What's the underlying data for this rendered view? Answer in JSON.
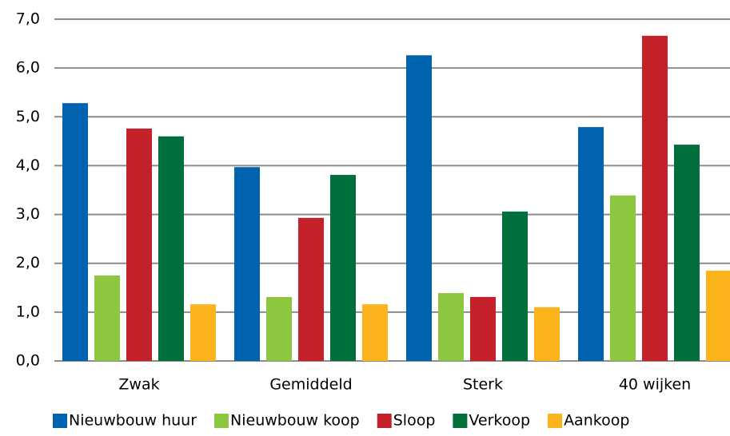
{
  "chart_data": {
    "type": "bar",
    "categories": [
      "Zwak",
      "Gemiddeld",
      "Sterk",
      "40 wijken"
    ],
    "series": [
      {
        "name": "Nieuwbouw huur",
        "color": "#0063b0",
        "values": [
          5.28,
          3.97,
          6.26,
          4.79
        ]
      },
      {
        "name": "Nieuwbouw koop",
        "color": "#8dc63f",
        "values": [
          1.75,
          1.31,
          1.39,
          3.39
        ]
      },
      {
        "name": "Sloop",
        "color": "#c4212b",
        "values": [
          4.76,
          2.93,
          1.31,
          6.66
        ]
      },
      {
        "name": "Verkoop",
        "color": "#006f3c",
        "values": [
          4.6,
          3.81,
          3.06,
          4.43
        ]
      },
      {
        "name": "Aankoop",
        "color": "#fbb41c",
        "values": [
          1.16,
          1.16,
          1.1,
          1.85
        ]
      }
    ],
    "ylim": [
      0,
      7
    ],
    "yticks": [
      {
        "value": 0,
        "label": "0,0"
      },
      {
        "value": 1,
        "label": "1,0"
      },
      {
        "value": 2,
        "label": "2,0"
      },
      {
        "value": 3,
        "label": "3,0"
      },
      {
        "value": 4,
        "label": "4,0"
      },
      {
        "value": 5,
        "label": "5,0"
      },
      {
        "value": 6,
        "label": "6,0"
      },
      {
        "value": 7,
        "label": "7,0"
      }
    ],
    "grid": true,
    "legend": "bottom"
  }
}
